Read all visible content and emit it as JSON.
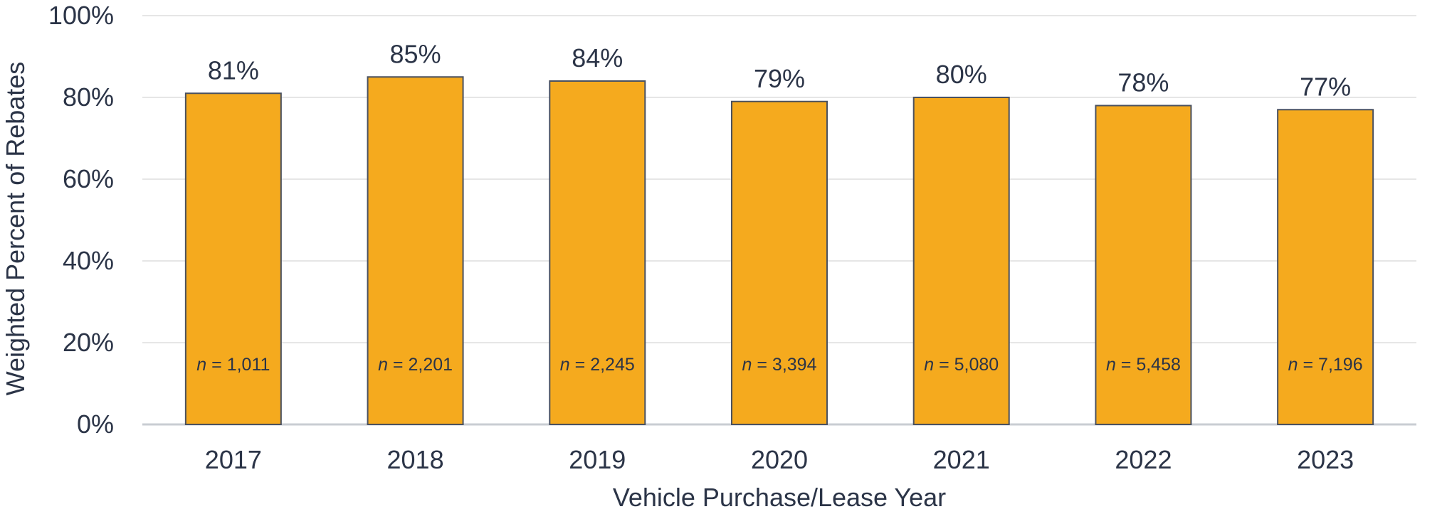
{
  "chart_data": {
    "type": "bar",
    "categories": [
      "2017",
      "2018",
      "2019",
      "2020",
      "2021",
      "2022",
      "2023"
    ],
    "values": [
      81,
      85,
      84,
      79,
      80,
      78,
      77
    ],
    "value_labels": [
      "81%",
      "85%",
      "84%",
      "79%",
      "80%",
      "78%",
      "77%"
    ],
    "sample_sizes": [
      "1,011",
      "2,201",
      "2,245",
      "3,394",
      "5,080",
      "5,458",
      "7,196"
    ],
    "sample_prefix": "n",
    "sample_equals": " = ",
    "y_ticks": [
      "0%",
      "20%",
      "40%",
      "60%",
      "80%",
      "100%"
    ],
    "ylim": [
      0,
      100
    ],
    "xlabel": "Vehicle Purchase/Lease Year",
    "ylabel": "Weighted Percent of Rebates",
    "grid": true,
    "colors": {
      "bar_fill": "#F5AA1E",
      "bar_stroke": "#4A5160",
      "grid": "#E6E6E6",
      "axis": "#C9CDD3",
      "text": "#2B3447"
    }
  }
}
